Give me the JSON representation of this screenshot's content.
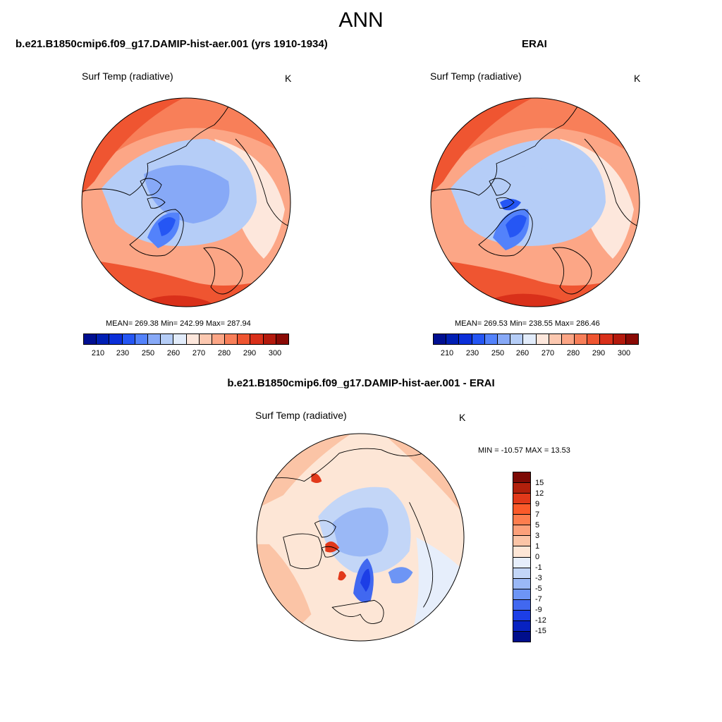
{
  "season": "ANN",
  "panels": [
    {
      "title": "b.e21.B1850cmip6.f09_g17.DAMIP-hist-aer.001 (yrs 1910-1934)",
      "var_label": "Surf Temp (radiative)",
      "units": "K",
      "stats": "MEAN= 269.38  Min= 242.99  Max= 287.94"
    },
    {
      "title": "ERAI",
      "var_label": "Surf Temp (radiative)",
      "units": "K",
      "stats": "MEAN= 269.53  Min= 238.55  Max= 286.46"
    },
    {
      "title": "b.e21.B1850cmip6.f09_g17.DAMIP-hist-aer.001 - ERAI",
      "var_label": "Surf Temp (radiative)",
      "units": "K",
      "stats": "MIN = -10.57 MAX =  13.53"
    }
  ],
  "chart_data": [
    {
      "type": "heatmap",
      "projection": "north-polar-stereographic",
      "title": "b.e21.B1850cmip6.f09_g17.DAMIP-hist-aer.001 (yrs 1910-1934)",
      "variable": "Surf Temp (radiative)",
      "units": "K",
      "mean": 269.38,
      "min": 242.99,
      "max": 287.94,
      "colorbar": {
        "orientation": "horizontal",
        "tick_labels": [
          "210",
          "230",
          "250",
          "260",
          "270",
          "280",
          "290",
          "300"
        ],
        "colors": [
          "#000f91",
          "#001fb4",
          "#0b2fd9",
          "#2556f4",
          "#5382fb",
          "#87a9f7",
          "#b5cdf7",
          "#e2ecfb",
          "#fde7dc",
          "#fcc8b0",
          "#fca686",
          "#f87f59",
          "#ef5531",
          "#d9301a",
          "#b41a0d",
          "#8a0a05"
        ]
      }
    },
    {
      "type": "heatmap",
      "projection": "north-polar-stereographic",
      "title": "ERAI",
      "variable": "Surf Temp (radiative)",
      "units": "K",
      "mean": 269.53,
      "min": 238.55,
      "max": 286.46,
      "colorbar": {
        "orientation": "horizontal",
        "tick_labels": [
          "210",
          "230",
          "250",
          "260",
          "270",
          "280",
          "290",
          "300"
        ],
        "colors": [
          "#000f91",
          "#001fb4",
          "#0b2fd9",
          "#2556f4",
          "#5382fb",
          "#87a9f7",
          "#b5cdf7",
          "#e2ecfb",
          "#fde7dc",
          "#fcc8b0",
          "#fca686",
          "#f87f59",
          "#ef5531",
          "#d9301a",
          "#b41a0d",
          "#8a0a05"
        ]
      }
    },
    {
      "type": "heatmap",
      "projection": "north-polar-stereographic",
      "title": "b.e21.B1850cmip6.f09_g17.DAMIP-hist-aer.001 - ERAI",
      "variable": "Surf Temp (radiative)",
      "units": "K",
      "min": -10.57,
      "max": 13.53,
      "colorbar": {
        "orientation": "vertical",
        "tick_labels": [
          "15",
          "12",
          "9",
          "7",
          "5",
          "3",
          "1",
          "0",
          "-1",
          "-3",
          "-5",
          "-7",
          "-9",
          "-12",
          "-15"
        ],
        "colors": [
          "#7d0a05",
          "#b2200c",
          "#e2391a",
          "#fb5a2a",
          "#fd7d4e",
          "#fca07a",
          "#fbc4a6",
          "#fde6d6",
          "#e6eefb",
          "#c3d6f7",
          "#9ab8f6",
          "#6d95f5",
          "#4168f0",
          "#1c3ee6",
          "#0822c1",
          "#000e8c"
        ]
      }
    }
  ]
}
